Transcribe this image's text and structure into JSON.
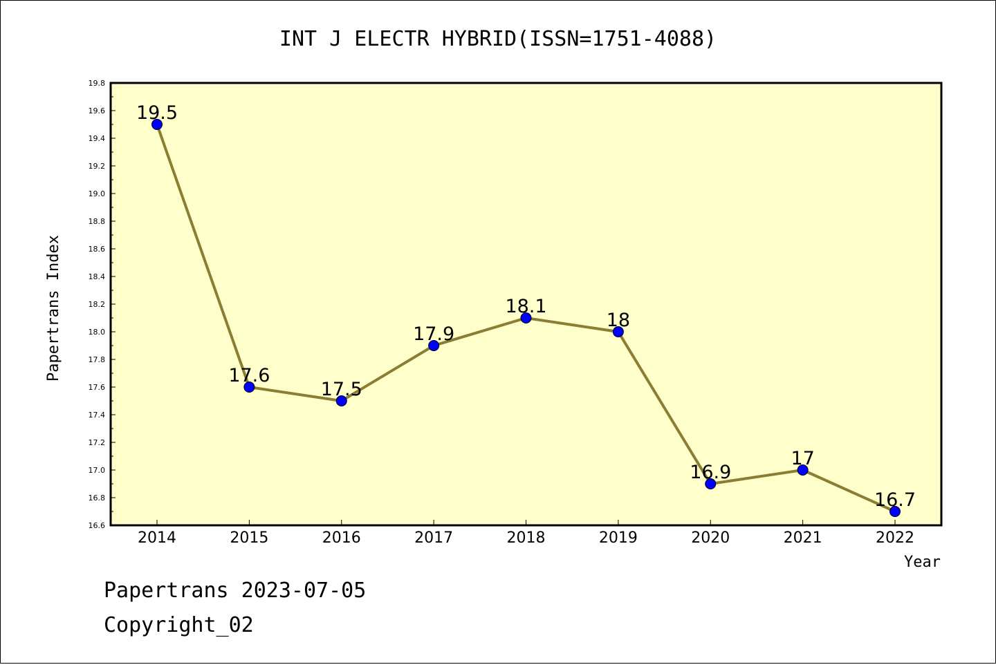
{
  "chart_data": {
    "type": "line",
    "title": "INT J ELECTR HYBRID(ISSN=1751-4088)",
    "xlabel": "Year",
    "ylabel": "Papertrans Index",
    "categories": [
      "2014",
      "2015",
      "2016",
      "2017",
      "2018",
      "2019",
      "2020",
      "2021",
      "2022"
    ],
    "series": [
      {
        "values": [
          19.5,
          17.6,
          17.5,
          17.9,
          18.1,
          18.0,
          16.9,
          17.0,
          16.7
        ],
        "labels": [
          "19.5",
          "17.6",
          "17.5",
          "17.9",
          "18.1",
          "18",
          "16.9",
          "17",
          "16.7"
        ]
      }
    ],
    "ylim": [
      16.6,
      19.8
    ],
    "yticks": [
      "16.6",
      "16.8",
      "17.0",
      "17.2",
      "17.4",
      "17.6",
      "17.8",
      "18.0",
      "18.2",
      "18.4",
      "18.6",
      "18.8",
      "19.0",
      "19.2",
      "19.4",
      "19.6",
      "19.8"
    ],
    "grid": false,
    "legend": "none",
    "colors": {
      "plot_background": "#ffffcc",
      "line": "#8b7d33",
      "marker": "#0000ff"
    }
  },
  "footer": {
    "line1": "Papertrans 2023-07-05",
    "line2": "Copyright_02"
  }
}
